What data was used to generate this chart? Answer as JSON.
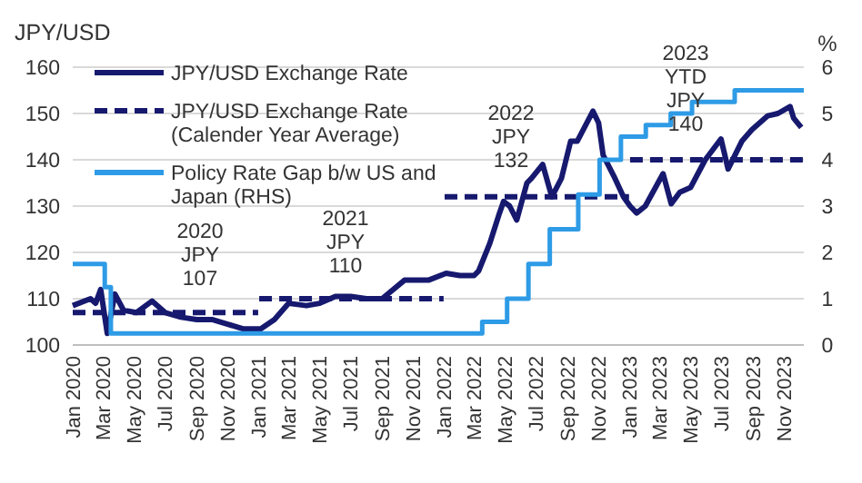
{
  "chart_data": {
    "type": "line",
    "ylabel": "JPY/USD",
    "y2label": "%",
    "xlim": [
      "2020-01-01",
      "2023-12-10"
    ],
    "xticks": [
      {
        "value": "2020-01-01",
        "label": "Jan 2020"
      },
      {
        "value": "2020-03-01",
        "label": "Mar 2020"
      },
      {
        "value": "2020-05-01",
        "label": "May 2020"
      },
      {
        "value": "2020-07-01",
        "label": "Jul 2020"
      },
      {
        "value": "2020-09-01",
        "label": "Sep 2020"
      },
      {
        "value": "2020-11-01",
        "label": "Nov 2020"
      },
      {
        "value": "2021-01-01",
        "label": "Jan 2021"
      },
      {
        "value": "2021-03-01",
        "label": "Mar 2021"
      },
      {
        "value": "2021-05-01",
        "label": "May 2021"
      },
      {
        "value": "2021-07-01",
        "label": "Jul 2021"
      },
      {
        "value": "2021-09-01",
        "label": "Sep 2021"
      },
      {
        "value": "2021-11-01",
        "label": "Nov 2021"
      },
      {
        "value": "2022-01-01",
        "label": "Jan 2022"
      },
      {
        "value": "2022-03-01",
        "label": "Mar 2022"
      },
      {
        "value": "2022-05-01",
        "label": "May 2022"
      },
      {
        "value": "2022-07-01",
        "label": "Jul 2022"
      },
      {
        "value": "2022-09-01",
        "label": "Sep 2022"
      },
      {
        "value": "2022-11-01",
        "label": "Nov 2022"
      },
      {
        "value": "2023-01-01",
        "label": "Jan 2023"
      },
      {
        "value": "2023-03-01",
        "label": "Mar 2023"
      },
      {
        "value": "2023-05-01",
        "label": "May 2023"
      },
      {
        "value": "2023-07-01",
        "label": "Jul 2023"
      },
      {
        "value": "2023-09-01",
        "label": "Sep 2023"
      },
      {
        "value": "2023-11-01",
        "label": "Nov 2023"
      }
    ],
    "ylim": [
      100,
      160
    ],
    "yticks": [
      100,
      110,
      120,
      130,
      140,
      150,
      160
    ],
    "y2lim": [
      0,
      6
    ],
    "y2ticks": [
      0,
      1,
      2,
      3,
      4,
      5,
      6
    ],
    "grid": "y",
    "legend": "top left",
    "series": [
      {
        "name": "JPY/USD Exchange Rate",
        "color": "#16196e",
        "line_style": "solid",
        "x": [
          "2020-01-01",
          "2020-02-05",
          "2020-02-15",
          "2020-02-25",
          "2020-03-09",
          "2020-03-24",
          "2020-04-10",
          "2020-05-05",
          "2020-06-05",
          "2020-07-01",
          "2020-08-01",
          "2020-09-01",
          "2020-10-01",
          "2020-11-01",
          "2020-12-01",
          "2021-01-05",
          "2021-02-01",
          "2021-03-01",
          "2021-04-05",
          "2021-05-01",
          "2021-06-01",
          "2021-07-01",
          "2021-08-01",
          "2021-09-01",
          "2021-10-15",
          "2021-11-01",
          "2021-12-01",
          "2022-01-05",
          "2022-02-01",
          "2022-03-01",
          "2022-03-10",
          "2022-04-01",
          "2022-04-20",
          "2022-04-28",
          "2022-05-10",
          "2022-05-24",
          "2022-06-13",
          "2022-06-22",
          "2022-07-14",
          "2022-08-01",
          "2022-08-20",
          "2022-09-07",
          "2022-09-20",
          "2022-10-21",
          "2022-11-01",
          "2022-11-10",
          "2022-12-01",
          "2022-12-20",
          "2023-01-02",
          "2023-01-15",
          "2023-02-01",
          "2023-03-08",
          "2023-03-24",
          "2023-04-10",
          "2023-05-01",
          "2023-05-30",
          "2023-06-30",
          "2023-07-14",
          "2023-08-10",
          "2023-08-30",
          "2023-09-30",
          "2023-10-20",
          "2023-11-13",
          "2023-11-20",
          "2023-12-05"
        ],
        "values": [
          108.5,
          110,
          109,
          112,
          102.5,
          111,
          107.5,
          107,
          109.5,
          107,
          106,
          105.5,
          105.5,
          104.5,
          103.5,
          103.5,
          105.5,
          109,
          108.5,
          109,
          110.5,
          110.5,
          110,
          110,
          114,
          114,
          114,
          115.5,
          115,
          115,
          116,
          122,
          128.5,
          131,
          130,
          127,
          135,
          136,
          139,
          132,
          136,
          144,
          144,
          150.5,
          148,
          141,
          136.5,
          132,
          130,
          128.5,
          130,
          137,
          130.5,
          133,
          134,
          140,
          144.5,
          138,
          144,
          146.5,
          149.5,
          150,
          151.5,
          149,
          147
        ]
      },
      {
        "name": "JPY/USD Exchange Rate (Calender Year Average)",
        "color": "#16196e",
        "line_style": "dashed",
        "x": [
          "2020-01-01",
          "2020-12-31",
          "2021-01-01",
          "2021-01-02",
          "2021-12-31",
          "2022-01-01",
          "2022-01-02",
          "2022-12-31",
          "2023-01-01",
          "2023-01-02",
          "2023-12-10"
        ],
        "values": [
          107,
          107,
          null,
          110,
          110,
          null,
          132,
          132,
          null,
          140,
          140
        ]
      },
      {
        "name": "Policy Rate Gap b/w US and Japan (RHS)",
        "type": "step",
        "axis": "y2",
        "color": "#2e9be6",
        "line_style": "solid",
        "x": [
          "2020-01-01",
          "2020-03-04",
          "2020-03-16",
          "2022-03-17",
          "2022-05-05",
          "2022-06-16",
          "2022-07-28",
          "2022-09-22",
          "2022-11-03",
          "2022-12-15",
          "2023-02-02",
          "2023-03-23",
          "2023-05-04",
          "2023-07-27",
          "2023-12-10"
        ],
        "values": [
          1.75,
          1.25,
          0.25,
          0.5,
          1,
          1.75,
          2.5,
          3.25,
          4,
          4.5,
          4.75,
          5,
          5.25,
          5.5,
          5.5
        ]
      }
    ],
    "annotations": [
      "2020\nJPY\n107",
      "2021\nJPY\n110",
      "2022\nJPY\n132",
      "2023\nYTD\nJPY\n140"
    ]
  }
}
